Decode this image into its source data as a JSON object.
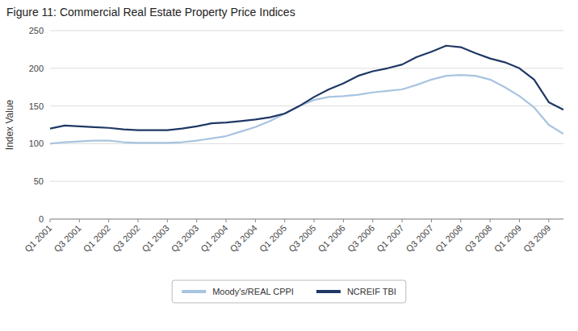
{
  "chart_data": {
    "type": "line",
    "title": "Figure 11: Commercial Real Estate Property Price Indices",
    "y_label": "Index Value",
    "categories": [
      "Q1 2001",
      null,
      "Q3 2001",
      null,
      "Q1 2002",
      null,
      "Q3 2002",
      null,
      "Q1 2003",
      null,
      "Q3 2003",
      null,
      "Q1 2004",
      null,
      "Q3 2004",
      null,
      "Q1 2005",
      null,
      "Q3 2005",
      null,
      "Q1 2006",
      null,
      "Q3 2006",
      null,
      "Q1 2007",
      null,
      "Q3 2007",
      null,
      "Q1 2008",
      null,
      "Q3 2008",
      null,
      "Q1 2009",
      null,
      "Q3 2009",
      null
    ],
    "series": [
      {
        "name": "Moody's/REAL CPPI",
        "color": "#a8c4e0",
        "values": [
          100,
          102,
          103,
          104,
          104,
          102,
          101,
          101,
          101,
          102,
          104,
          107,
          110,
          116,
          122,
          130,
          140,
          150,
          158,
          162,
          163,
          165,
          168,
          170,
          172,
          178,
          185,
          190,
          191,
          190,
          185,
          175,
          163,
          148,
          125,
          113
        ]
      },
      {
        "name": "NCREIF TBI",
        "color": "#1f3864",
        "values": [
          120,
          124,
          123,
          122,
          121,
          119,
          118,
          118,
          118,
          120,
          123,
          127,
          128,
          130,
          132,
          135,
          140,
          150,
          162,
          172,
          180,
          190,
          196,
          200,
          205,
          215,
          222,
          230,
          228,
          220,
          213,
          208,
          200,
          185,
          155,
          145
        ]
      }
    ],
    "ylim": [
      0,
      250
    ],
    "yticks": [
      0,
      50,
      100,
      150,
      200,
      250
    ],
    "grid": true,
    "legend": "bottom"
  }
}
